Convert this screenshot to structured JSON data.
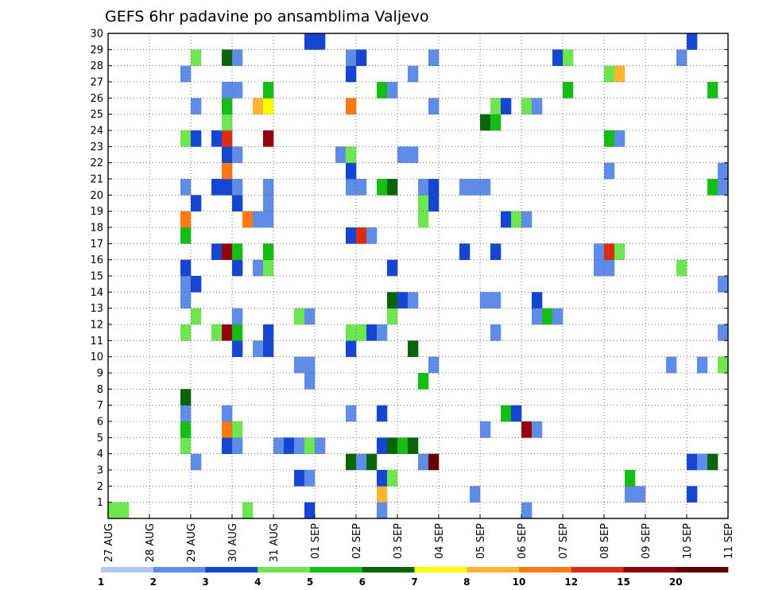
{
  "chart_data": {
    "type": "heatmap",
    "title": "GEFS 6hr padavine po ansamblima Valjevo",
    "xlabel": "",
    "ylabel": "",
    "x_ticks": [
      "27 AUG",
      "28 AUG",
      "29 AUG",
      "30 AUG",
      "31 AUG",
      "01 SEP",
      "02 SEP",
      "03 SEP",
      "04 SEP",
      "05 SEP",
      "06 SEP",
      "07 SEP",
      "08 SEP",
      "09 SEP",
      "10 SEP",
      "11 SEP"
    ],
    "y_ticks": [
      1,
      2,
      3,
      4,
      5,
      6,
      7,
      8,
      9,
      10,
      11,
      12,
      13,
      14,
      15,
      16,
      17,
      18,
      19,
      20,
      21,
      22,
      23,
      24,
      25,
      26,
      27,
      28,
      29,
      30
    ],
    "xlim": [
      0,
      60
    ],
    "ylim": [
      0,
      30
    ],
    "grid": true,
    "colorbar": {
      "labels": [
        "1",
        "2",
        "3",
        "4",
        "5",
        "6",
        "7",
        "8",
        "10",
        "12",
        "15",
        "20"
      ],
      "colors": [
        "#b4c8f5",
        "#5f8ce6",
        "#1446d2",
        "#6ee650",
        "#14be14",
        "#0a640a",
        "#ffff00",
        "#ffb432",
        "#ff7814",
        "#dc2d14",
        "#96000a",
        "#640000"
      ]
    },
    "cells": [
      [
        0,
        0,
        3
      ],
      [
        1,
        0,
        3
      ],
      [
        13,
        0,
        3
      ],
      [
        19,
        0,
        2
      ],
      [
        26,
        0,
        1
      ],
      [
        40,
        0,
        1
      ],
      [
        26,
        1,
        7
      ],
      [
        35,
        1,
        1
      ],
      [
        50,
        1,
        1
      ],
      [
        51,
        1,
        1
      ],
      [
        56,
        1,
        2
      ],
      [
        18,
        2,
        2
      ],
      [
        19,
        2,
        1
      ],
      [
        26,
        2,
        2
      ],
      [
        27,
        2,
        3
      ],
      [
        50,
        2,
        4
      ],
      [
        8,
        3,
        1
      ],
      [
        23,
        3,
        5
      ],
      [
        24,
        3,
        1
      ],
      [
        25,
        3,
        5
      ],
      [
        30,
        3,
        1
      ],
      [
        31,
        3,
        11
      ],
      [
        56,
        3,
        2
      ],
      [
        57,
        3,
        1
      ],
      [
        58,
        3,
        5
      ],
      [
        7,
        4,
        3
      ],
      [
        11,
        4,
        2
      ],
      [
        12,
        4,
        1
      ],
      [
        16,
        4,
        1
      ],
      [
        17,
        4,
        2
      ],
      [
        18,
        4,
        1
      ],
      [
        19,
        4,
        3
      ],
      [
        20,
        4,
        1
      ],
      [
        26,
        4,
        2
      ],
      [
        27,
        4,
        5
      ],
      [
        28,
        4,
        4
      ],
      [
        29,
        4,
        5
      ],
      [
        7,
        5,
        4
      ],
      [
        11,
        5,
        8
      ],
      [
        12,
        5,
        3
      ],
      [
        36,
        5,
        1
      ],
      [
        40,
        5,
        10
      ],
      [
        41,
        5,
        1
      ],
      [
        7,
        6,
        1
      ],
      [
        11,
        6,
        1
      ],
      [
        23,
        6,
        1
      ],
      [
        26,
        6,
        2
      ],
      [
        38,
        6,
        4
      ],
      [
        39,
        6,
        2
      ],
      [
        7,
        7,
        5
      ],
      [
        30,
        8,
        4
      ],
      [
        19,
        8,
        1
      ],
      [
        18,
        9,
        1
      ],
      [
        19,
        9,
        1
      ],
      [
        31,
        9,
        1
      ],
      [
        54,
        9,
        1
      ],
      [
        57,
        9,
        1
      ],
      [
        59,
        9,
        3
      ],
      [
        12,
        10,
        2
      ],
      [
        14,
        10,
        1
      ],
      [
        15,
        10,
        2
      ],
      [
        23,
        10,
        2
      ],
      [
        29,
        10,
        5
      ],
      [
        7,
        11,
        3
      ],
      [
        10,
        11,
        3
      ],
      [
        11,
        11,
        10
      ],
      [
        12,
        11,
        4
      ],
      [
        15,
        11,
        2
      ],
      [
        23,
        11,
        3
      ],
      [
        24,
        11,
        3
      ],
      [
        25,
        11,
        2
      ],
      [
        26,
        11,
        1
      ],
      [
        37,
        11,
        1
      ],
      [
        59,
        11,
        1
      ],
      [
        8,
        12,
        3
      ],
      [
        12,
        12,
        1
      ],
      [
        18,
        12,
        3
      ],
      [
        19,
        12,
        1
      ],
      [
        27,
        12,
        3
      ],
      [
        41,
        12,
        1
      ],
      [
        42,
        12,
        4
      ],
      [
        43,
        12,
        1
      ],
      [
        7,
        13,
        1
      ],
      [
        27,
        13,
        5
      ],
      [
        28,
        13,
        2
      ],
      [
        29,
        13,
        1
      ],
      [
        36,
        13,
        1
      ],
      [
        37,
        13,
        1
      ],
      [
        41,
        13,
        2
      ],
      [
        7,
        14,
        1
      ],
      [
        8,
        14,
        2
      ],
      [
        59,
        14,
        1
      ],
      [
        7,
        15,
        2
      ],
      [
        12,
        15,
        2
      ],
      [
        14,
        15,
        1
      ],
      [
        15,
        15,
        3
      ],
      [
        27,
        15,
        2
      ],
      [
        47,
        15,
        1
      ],
      [
        48,
        15,
        1
      ],
      [
        55,
        15,
        3
      ],
      [
        10,
        16,
        2
      ],
      [
        11,
        16,
        10
      ],
      [
        12,
        16,
        4
      ],
      [
        15,
        16,
        4
      ],
      [
        34,
        16,
        2
      ],
      [
        37,
        16,
        2
      ],
      [
        47,
        16,
        1
      ],
      [
        48,
        16,
        9
      ],
      [
        49,
        16,
        3
      ],
      [
        7,
        17,
        4
      ],
      [
        23,
        17,
        2
      ],
      [
        24,
        17,
        9
      ],
      [
        25,
        17,
        1
      ],
      [
        7,
        18,
        8
      ],
      [
        13,
        18,
        8
      ],
      [
        14,
        18,
        1
      ],
      [
        15,
        18,
        1
      ],
      [
        30,
        18,
        3
      ],
      [
        38,
        18,
        2
      ],
      [
        39,
        18,
        3
      ],
      [
        40,
        18,
        1
      ],
      [
        8,
        19,
        2
      ],
      [
        12,
        19,
        2
      ],
      [
        15,
        19,
        1
      ],
      [
        30,
        19,
        3
      ],
      [
        31,
        19,
        2
      ],
      [
        7,
        20,
        1
      ],
      [
        10,
        20,
        2
      ],
      [
        11,
        20,
        2
      ],
      [
        12,
        20,
        1
      ],
      [
        15,
        20,
        1
      ],
      [
        23,
        20,
        1
      ],
      [
        24,
        20,
        1
      ],
      [
        26,
        20,
        4
      ],
      [
        27,
        20,
        5
      ],
      [
        30,
        20,
        1
      ],
      [
        31,
        20,
        2
      ],
      [
        34,
        20,
        1
      ],
      [
        35,
        20,
        1
      ],
      [
        36,
        20,
        1
      ],
      [
        58,
        20,
        4
      ],
      [
        59,
        20,
        1
      ],
      [
        11,
        21,
        8
      ],
      [
        23,
        21,
        2
      ],
      [
        48,
        21,
        1
      ],
      [
        59,
        21,
        1
      ],
      [
        11,
        22,
        2
      ],
      [
        12,
        22,
        1
      ],
      [
        22,
        22,
        1
      ],
      [
        23,
        22,
        3
      ],
      [
        28,
        22,
        1
      ],
      [
        29,
        22,
        1
      ],
      [
        7,
        23,
        3
      ],
      [
        8,
        23,
        2
      ],
      [
        10,
        23,
        2
      ],
      [
        11,
        23,
        9
      ],
      [
        15,
        23,
        10
      ],
      [
        48,
        23,
        4
      ],
      [
        49,
        23,
        1
      ],
      [
        11,
        24,
        3
      ],
      [
        36,
        24,
        5
      ],
      [
        37,
        24,
        4
      ],
      [
        8,
        25,
        1
      ],
      [
        11,
        25,
        4
      ],
      [
        14,
        25,
        7
      ],
      [
        15,
        25,
        6
      ],
      [
        23,
        25,
        8
      ],
      [
        31,
        25,
        1
      ],
      [
        37,
        25,
        3
      ],
      [
        38,
        25,
        2
      ],
      [
        40,
        25,
        3
      ],
      [
        41,
        25,
        1
      ],
      [
        11,
        26,
        1
      ],
      [
        12,
        26,
        1
      ],
      [
        15,
        26,
        4
      ],
      [
        26,
        26,
        4
      ],
      [
        27,
        26,
        1
      ],
      [
        44,
        26,
        4
      ],
      [
        58,
        26,
        4
      ],
      [
        7,
        27,
        1
      ],
      [
        23,
        27,
        2
      ],
      [
        29,
        27,
        1
      ],
      [
        48,
        27,
        3
      ],
      [
        49,
        27,
        7
      ],
      [
        8,
        28,
        3
      ],
      [
        11,
        28,
        5
      ],
      [
        12,
        28,
        1
      ],
      [
        23,
        28,
        1
      ],
      [
        24,
        28,
        2
      ],
      [
        31,
        28,
        1
      ],
      [
        43,
        28,
        2
      ],
      [
        44,
        28,
        3
      ],
      [
        55,
        28,
        1
      ],
      [
        19,
        29,
        2
      ],
      [
        20,
        29,
        2
      ],
      [
        56,
        29,
        2
      ]
    ]
  }
}
